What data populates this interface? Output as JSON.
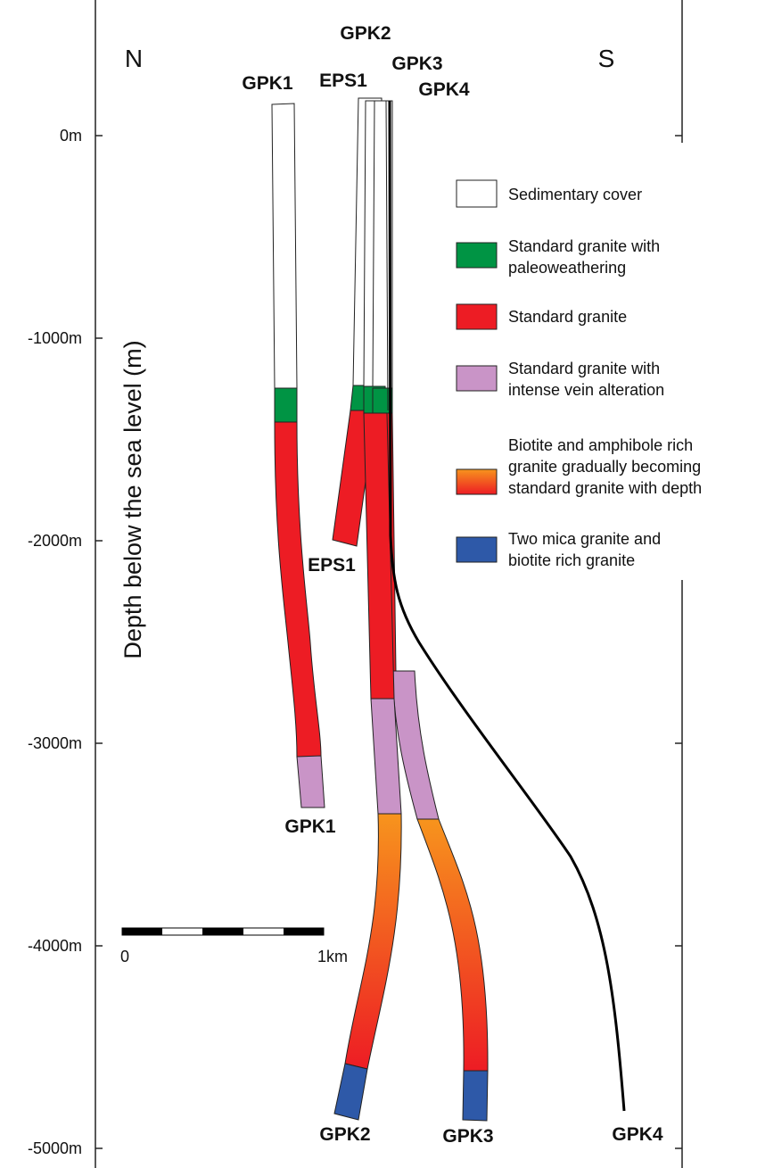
{
  "header": {
    "north": "N",
    "south": "S"
  },
  "axis": {
    "title": "Depth below the sea level (m)",
    "ticks": [
      "0m",
      "-1000m",
      "-2000m",
      "-3000m",
      "-4000m",
      "-5000m"
    ]
  },
  "wells_top": [
    "GPK1",
    "EPS1",
    "GPK2",
    "GPK3",
    "GPK4"
  ],
  "wells_bottom": [
    "EPS1",
    "GPK1",
    "GPK2",
    "GPK3",
    "GPK4"
  ],
  "scale_bar": {
    "start": "0",
    "end": "1km"
  },
  "legend": [
    {
      "lines": [
        "Sedimentary cover"
      ]
    },
    {
      "lines": [
        "Standard granite with",
        "paleoweathering"
      ]
    },
    {
      "lines": [
        "Standard granite"
      ]
    },
    {
      "lines": [
        "Standard granite with",
        "intense vein alteration"
      ]
    },
    {
      "lines": [
        "Biotite and amphibole rich",
        "granite gradually becoming",
        "standard granite with depth"
      ]
    },
    {
      "lines": [
        "Two mica granite and",
        "biotite rich granite"
      ]
    }
  ]
}
